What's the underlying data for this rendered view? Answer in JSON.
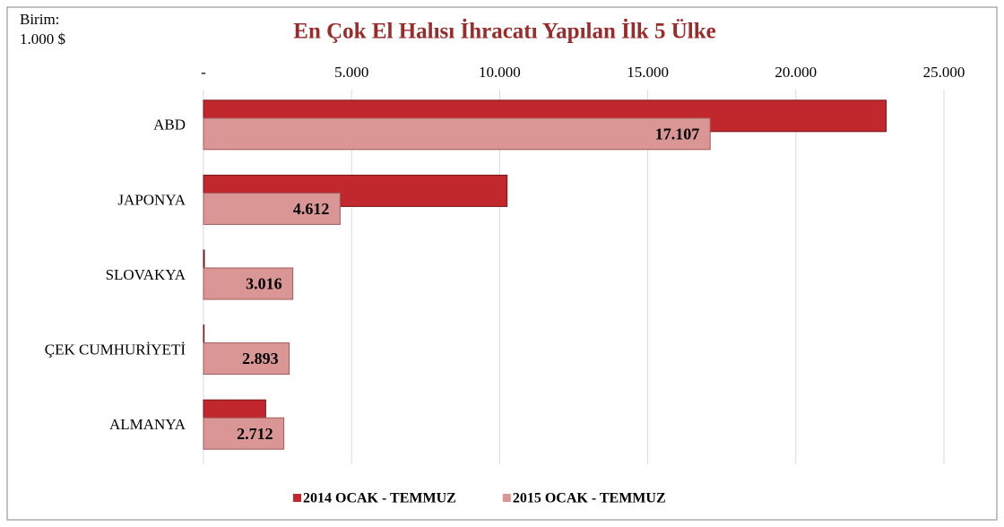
{
  "chart_data": {
    "type": "barh",
    "title": "En Çok El Halısı İhracatı Yapılan İlk 5 Ülke",
    "unit_label": [
      "Birim:",
      "1.000 $"
    ],
    "categories": [
      "ABD",
      "JAPONYA",
      "SLOVAKYA",
      "ÇEK CUMHURİYETİ",
      "ALMANYA"
    ],
    "series": [
      {
        "name": "2014 OCAK - TEMMUZ",
        "color": "#c0282d",
        "values": [
          23050,
          10250,
          30,
          20,
          2100
        ]
      },
      {
        "name": "2015 OCAK - TEMMUZ",
        "color": "#d99694",
        "values": [
          17107,
          4612,
          3016,
          2893,
          2712
        ],
        "value_labels": [
          "17.107",
          "4.612",
          "3.016",
          "2.893",
          "2.712"
        ]
      }
    ],
    "xlim": [
      0,
      25000
    ],
    "xticks": [
      {
        "value": 0,
        "label": "-"
      },
      {
        "value": 5000,
        "label": "5.000"
      },
      {
        "value": 10000,
        "label": "10.000"
      },
      {
        "value": 15000,
        "label": "15.000"
      },
      {
        "value": 20000,
        "label": "20.000"
      },
      {
        "value": 25000,
        "label": "25.000"
      }
    ],
    "grid": true,
    "legend": "bottom"
  }
}
